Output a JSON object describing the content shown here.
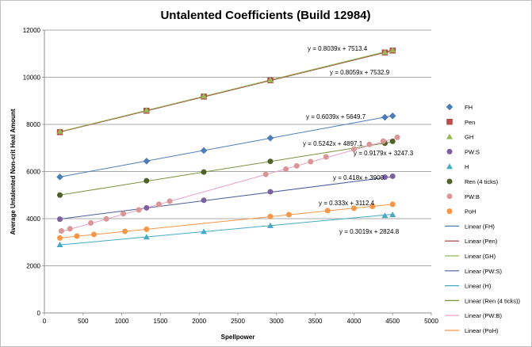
{
  "chart_data": {
    "type": "scatter",
    "title": "Untalented Coefficients (Build 12984)",
    "xlabel": "Spellpower",
    "ylabel": "Average Untalented Non-crit Heal Amount",
    "xlim": [
      0,
      5000
    ],
    "ylim": [
      0,
      12000
    ],
    "x_ticks": [
      0,
      500,
      1000,
      1500,
      2000,
      2500,
      3000,
      3500,
      4000,
      4500,
      5000
    ],
    "y_ticks": [
      0,
      2000,
      4000,
      6000,
      8000,
      10000,
      12000
    ],
    "grid": "horizontal",
    "legend_position": "right",
    "series": [
      {
        "name": "FH",
        "marker": "diamond",
        "color": "#4a7ebb",
        "x": [
          200,
          1320,
          2060,
          2920,
          4400,
          4500
        ],
        "y": [
          5770,
          6440,
          6890,
          7420,
          8300,
          8360
        ]
      },
      {
        "name": "Pen",
        "marker": "square",
        "color": "#be4b48",
        "x": [
          200,
          1320,
          2060,
          2920,
          4400,
          4500
        ],
        "y": [
          7670,
          8580,
          9180,
          9870,
          11050,
          11130
        ]
      },
      {
        "name": "GH",
        "marker": "triangle",
        "color": "#98b954",
        "x": [
          200,
          1320,
          2060,
          2920,
          4400,
          4500
        ],
        "y": [
          7700,
          8600,
          9200,
          9880,
          11060,
          11150
        ]
      },
      {
        "name": "PW:S",
        "marker": "circle",
        "color": "#7d60a0",
        "x": [
          200,
          1320,
          2060,
          2920,
          4400,
          4500
        ],
        "y": [
          3980,
          4460,
          4780,
          5140,
          5760,
          5800
        ]
      },
      {
        "name": "H",
        "marker": "triangle",
        "color": "#46aac5",
        "x": [
          200,
          1320,
          2060,
          2920,
          4400,
          4500
        ],
        "y": [
          2890,
          3220,
          3450,
          3700,
          4130,
          4170
        ]
      },
      {
        "name": "Ren (4 ticks)",
        "marker": "circle",
        "color": "#4f6228",
        "x": [
          200,
          1320,
          2060,
          2920,
          4400,
          4500
        ],
        "y": [
          5000,
          5610,
          5980,
          6430,
          7200,
          7280
        ]
      },
      {
        "name": "PW:B",
        "marker": "circle",
        "color": "#d99694",
        "x": [
          220,
          330,
          600,
          800,
          1020,
          1220,
          1480,
          1620,
          2860,
          3120,
          3260,
          3440,
          3640,
          4000,
          4200,
          4380,
          4560
        ],
        "y": [
          3480,
          3570,
          3820,
          3990,
          4210,
          4370,
          4610,
          4740,
          5880,
          6100,
          6240,
          6420,
          6620,
          6950,
          7150,
          7290,
          7450
        ]
      },
      {
        "name": "PoH",
        "marker": "circle",
        "color": "#f79646",
        "x": [
          200,
          420,
          640,
          1040,
          1320,
          2920,
          3160,
          3660,
          4000,
          4240,
          4500
        ],
        "y": [
          3180,
          3260,
          3330,
          3460,
          3550,
          4090,
          4170,
          4340,
          4440,
          4520,
          4610
        ]
      }
    ],
    "trendlines": [
      {
        "name": "Linear (FH)",
        "slope": 0.6039,
        "intercept": 5649.7,
        "color": "#4a7ebb",
        "equation": "y = 0.6039x + 5649.7"
      },
      {
        "name": "Linear (Pen)",
        "slope": 0.8039,
        "intercept": 7513.4,
        "color": "#9c3a38",
        "equation": "y = 0.8039x + 7513.4"
      },
      {
        "name": "Linear (GH)",
        "slope": 0.8059,
        "intercept": 7532.9,
        "color": "#98b954",
        "equation": "y = 0.8059x + 7532.9"
      },
      {
        "name": "Linear (PW:S)",
        "slope": 0.418,
        "intercept": 3900,
        "color": "#4a5f9c",
        "equation": "y = 0.418x + 3900"
      },
      {
        "name": "Linear (H)",
        "slope": 0.3019,
        "intercept": 2824.8,
        "color": "#46aac5",
        "equation": "y = 0.3019x + 2824.8"
      },
      {
        "name": "Linear (Ren (4 ticks))",
        "slope": 0.5242,
        "intercept": 4897.1,
        "color": "#77933c",
        "equation": "y = 0.5242x + 4897.1"
      },
      {
        "name": "Linear (PW:B)",
        "slope": 0.9179,
        "intercept": 3247.3,
        "color": "#e8a0c8",
        "equation": "y = 0.9179x + 3247.3"
      },
      {
        "name": "Linear (PoH)",
        "slope": 0.333,
        "intercept": 3112.4,
        "color": "#f79646",
        "equation": "y = 0.333x + 3112.4"
      }
    ]
  }
}
